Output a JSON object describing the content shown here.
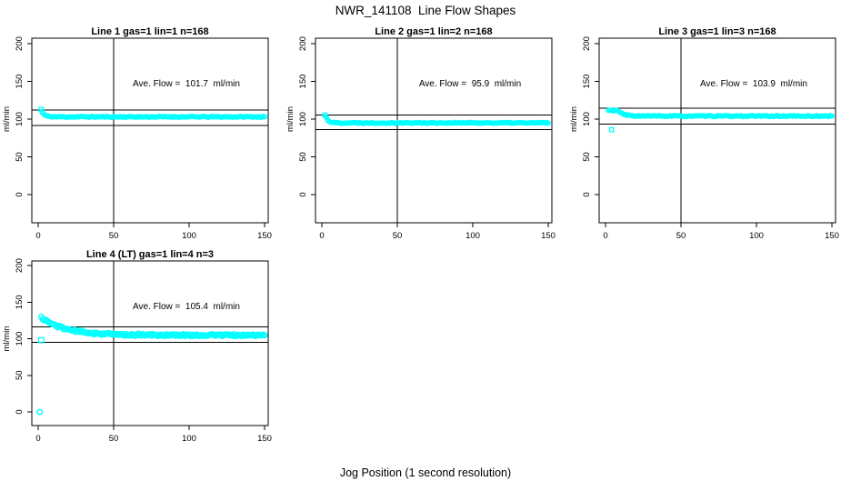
{
  "page": {
    "title": "NWR_141108  Line Flow Shapes",
    "xlabel": "Jog Position (1 second resolution)",
    "background": "#FFFFFF",
    "axis_color": "#000000",
    "point_color": "#00FFFF"
  },
  "chart_data": [
    {
      "type": "scatter",
      "title": "Line 1 gas=1 lin=1 n=168",
      "annotation": "Ave. Flow =  101.7  ml/min",
      "ave_flow_ml_min": 101.7,
      "n": 168,
      "ylabel": "ml/min",
      "xticks": [
        0,
        50,
        100,
        150
      ],
      "yticks": [
        0,
        50,
        100,
        150,
        200
      ],
      "xlim": [
        -4,
        152
      ],
      "ylim": [
        -37,
        207
      ],
      "grid": false,
      "vline_x": 50,
      "ref_lines": [
        111.9,
        91.5
      ],
      "marker": "open-circle",
      "color": "#00FFFF",
      "series_model": {
        "x_start": 3,
        "x_end": 150,
        "step": 1,
        "start": 108,
        "settle": 103,
        "tau": 1.8,
        "plateau_until": 0,
        "noise": 0.7,
        "seed": 11,
        "marker_r": 2.2
      },
      "extra_points": [
        {
          "x": 2,
          "y": 113,
          "marker": "square"
        },
        {
          "x": 2.6,
          "y": 110,
          "marker": "circle"
        }
      ]
    },
    {
      "type": "scatter",
      "title": "Line 2 gas=1 lin=2 n=168",
      "annotation": "Ave. Flow =  95.9  ml/min",
      "ave_flow_ml_min": 95.9,
      "n": 168,
      "ylabel": "ml/min",
      "xticks": [
        0,
        50,
        100,
        150
      ],
      "yticks": [
        0,
        50,
        100,
        150,
        200
      ],
      "xlim": [
        -4,
        152
      ],
      "ylim": [
        -37,
        207
      ],
      "grid": false,
      "vline_x": 50,
      "ref_lines": [
        105.5,
        86.3
      ],
      "marker": "open-circle",
      "color": "#00FFFF",
      "series_model": {
        "x_start": 3,
        "x_end": 150,
        "step": 1,
        "start": 102,
        "settle": 95,
        "tau": 1.6,
        "plateau_until": 0,
        "noise": 0.7,
        "seed": 22,
        "marker_r": 2.2
      },
      "extra_points": [
        {
          "x": 2,
          "y": 105.5,
          "marker": "square"
        },
        {
          "x": 2.6,
          "y": 103,
          "marker": "circle"
        }
      ]
    },
    {
      "type": "scatter",
      "title": "Line 3 gas=1 lin=3 n=168",
      "annotation": "Ave. Flow =  103.9  ml/min",
      "ave_flow_ml_min": 103.9,
      "n": 168,
      "ylabel": "ml/min",
      "xticks": [
        0,
        50,
        100,
        150
      ],
      "yticks": [
        0,
        50,
        100,
        150,
        200
      ],
      "xlim": [
        -4,
        152
      ],
      "ylim": [
        -37,
        207
      ],
      "grid": false,
      "vline_x": 50,
      "ref_lines": [
        114.3,
        93.5
      ],
      "marker": "open-circle",
      "color": "#00FFFF",
      "series_model": {
        "x_start": 2,
        "x_end": 150,
        "step": 1,
        "start": 111.5,
        "settle": 104,
        "tau": 3.5,
        "plateau_until": 8,
        "noise": 0.7,
        "seed": 33,
        "marker_r": 2.2
      },
      "extra_points": [
        {
          "x": 4,
          "y": 86,
          "marker": "square"
        }
      ]
    },
    {
      "type": "scatter",
      "title": "Line 4 (LT) gas=1 lin=4 n=3",
      "annotation": "Ave. Flow =  105.4  ml/min",
      "ave_flow_ml_min": 105.4,
      "n": 3,
      "ylabel": "ml/min",
      "xticks": [
        0,
        50,
        100,
        150
      ],
      "yticks": [
        0,
        50,
        100,
        150,
        200
      ],
      "xlim": [
        -4,
        152
      ],
      "ylim": [
        -19,
        206
      ],
      "grid": false,
      "vline_x": 50,
      "ref_lines": [
        116.0,
        94.9
      ],
      "marker": "open-circle",
      "color": "#00FFFF",
      "series_model": {
        "x_start": 2,
        "x_end": 150,
        "step": 1,
        "start": 129,
        "settle": 104.8,
        "tau": 16,
        "plateau_until": 0,
        "noise": 1.4,
        "seed": 44,
        "marker_r": 2.8
      },
      "extra_points": [
        {
          "x": 2,
          "y": 98,
          "marker": "square"
        },
        {
          "x": 1,
          "y": 0,
          "marker": "circle"
        }
      ]
    }
  ]
}
